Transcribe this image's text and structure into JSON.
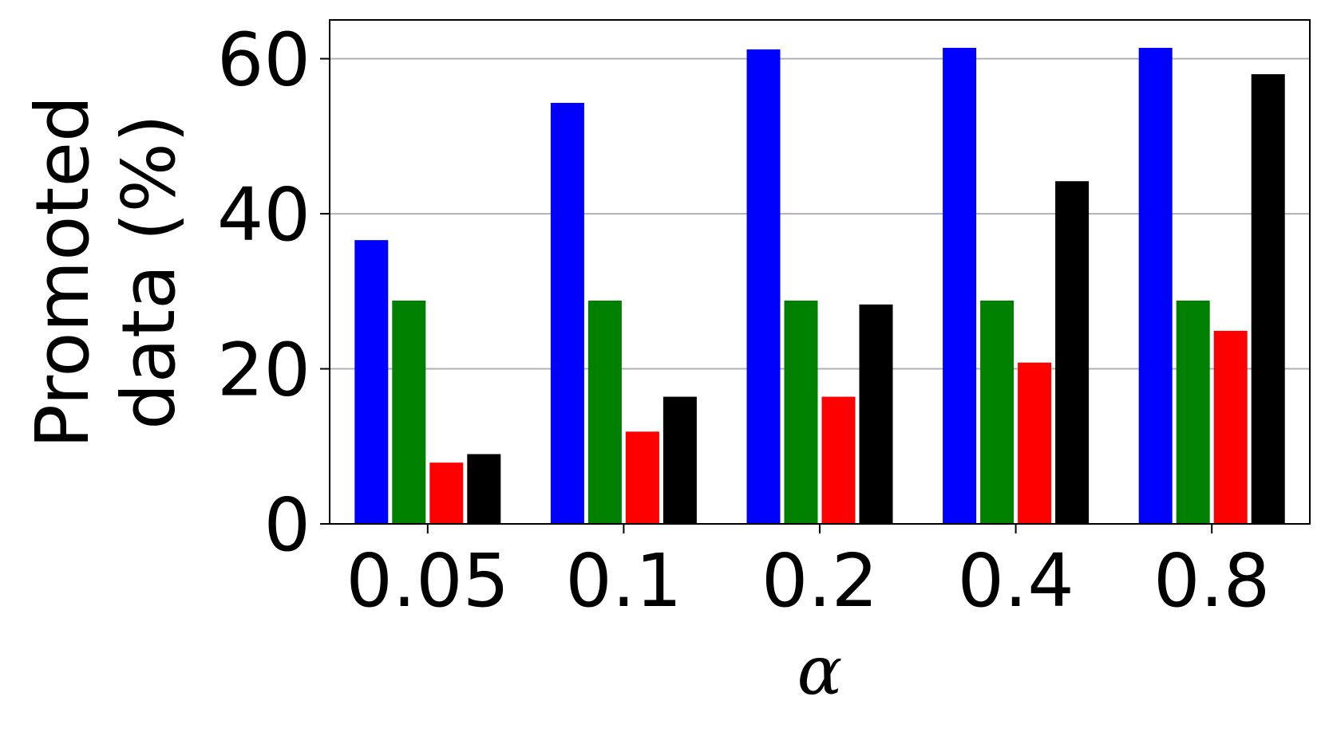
{
  "chart_data": {
    "type": "bar",
    "categories": [
      "0.05",
      "0.1",
      "0.2",
      "0.4",
      "0.8"
    ],
    "series": [
      {
        "color": "#0000ff",
        "values": [
          36.6,
          54.3,
          61.2,
          61.4,
          61.4
        ]
      },
      {
        "color": "#008000",
        "values": [
          28.8,
          28.8,
          28.8,
          28.8,
          28.8
        ]
      },
      {
        "color": "#ff0000",
        "values": [
          7.9,
          11.9,
          16.4,
          20.8,
          24.9
        ]
      },
      {
        "color": "#000000",
        "values": [
          9.0,
          16.4,
          28.3,
          44.2,
          58.0
        ]
      }
    ],
    "xlabel": "α",
    "ylabel_lines": [
      "Promoted",
      "data (%)"
    ],
    "ylim": [
      0,
      65
    ],
    "yticks": [
      0,
      20,
      40,
      60
    ],
    "grid": "y",
    "legend": "none"
  }
}
